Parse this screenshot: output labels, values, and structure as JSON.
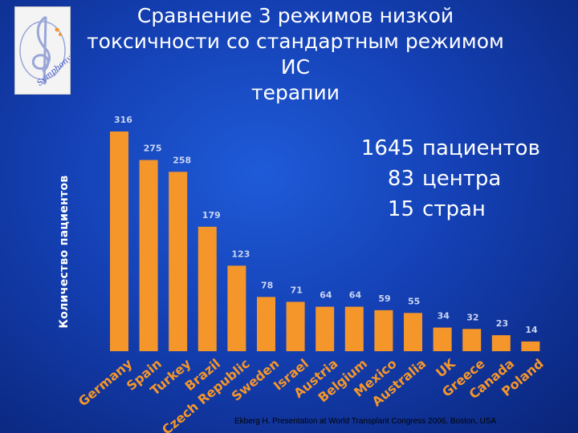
{
  "title": {
    "line1": "Сравнение 3 режимов низкой",
    "line2": "токсичности со стандартным режимом ИС",
    "line3": "терапии"
  },
  "stats": [
    {
      "value": "1645",
      "label": "пациентов"
    },
    {
      "value": "83",
      "label": "центра"
    },
    {
      "value": "15",
      "label": "стран"
    }
  ],
  "logo": {
    "text": "Symphony"
  },
  "citation": "Ekberg H. Presentation at World Transplant Congress 2006, Boston, USA",
  "colors": {
    "bar": "#f5962a",
    "background": "#1440b4",
    "text": "#ffffff",
    "category_text": "#f5962a"
  },
  "chart_data": {
    "type": "bar",
    "ylabel": "Количество пациентов",
    "ylim": [
      0,
      316
    ],
    "grid": false,
    "categories": [
      "Germany",
      "Spain",
      "Turkey",
      "Brazil",
      "Czech Republic",
      "Sweden",
      "Israel",
      "Austria",
      "Belgium",
      "Mexico",
      "Australia",
      "UK",
      "Greece",
      "Canada",
      "Poland"
    ],
    "values": [
      316,
      275,
      258,
      179,
      123,
      78,
      71,
      64,
      64,
      59,
      55,
      34,
      32,
      23,
      14
    ]
  }
}
